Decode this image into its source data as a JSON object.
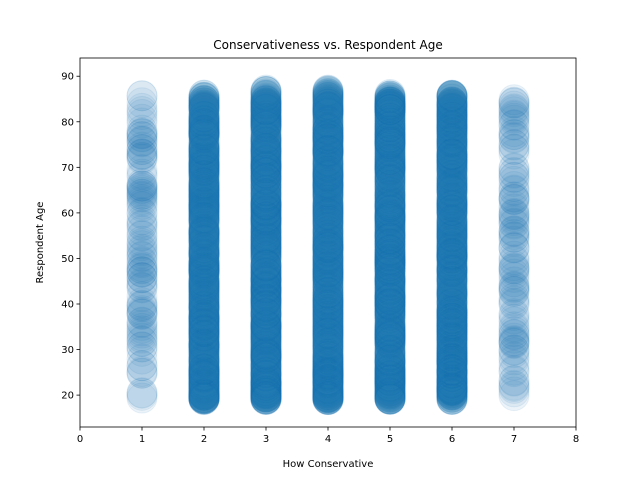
{
  "chart_data": {
    "type": "scatter",
    "title": "Conservativeness vs. Respondent Age",
    "xlabel": "How Conservative",
    "ylabel": "Respondent Age",
    "xlim": [
      0,
      8
    ],
    "ylim": [
      13,
      94
    ],
    "x_ticks": [
      "0",
      "1",
      "2",
      "3",
      "4",
      "5",
      "6",
      "7",
      "8"
    ],
    "y_ticks": [
      "20",
      "30",
      "40",
      "50",
      "60",
      "70",
      "80",
      "90"
    ],
    "grid": false,
    "marker_color": "#1f77b4",
    "marker_alpha": 0.08,
    "columns": [
      {
        "x": 1,
        "age_min": 19,
        "age_max": 86,
        "density": "sparse"
      },
      {
        "x": 2,
        "age_min": 19,
        "age_max": 86,
        "density": "dense"
      },
      {
        "x": 3,
        "age_min": 19,
        "age_max": 87,
        "density": "dense"
      },
      {
        "x": 4,
        "age_min": 19,
        "age_max": 87,
        "density": "dense"
      },
      {
        "x": 5,
        "age_min": 19,
        "age_max": 86,
        "density": "dense"
      },
      {
        "x": 6,
        "age_min": 19,
        "age_max": 86,
        "density": "dense"
      },
      {
        "x": 7,
        "age_min": 19,
        "age_max": 86,
        "density": "sparse"
      }
    ]
  }
}
